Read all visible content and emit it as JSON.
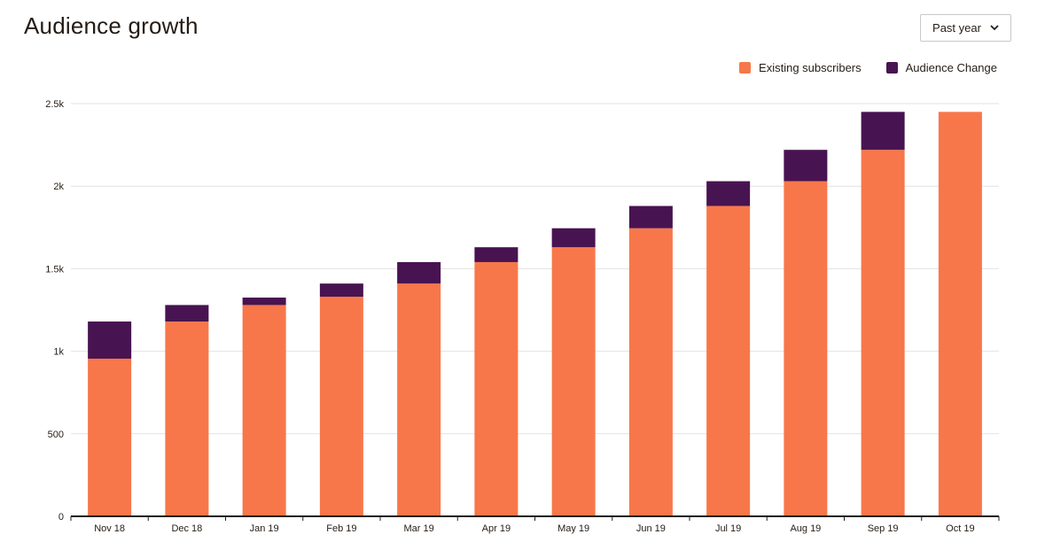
{
  "header": {
    "title": "Audience growth"
  },
  "range_select": {
    "value": "Past year",
    "icon": "chevron-down-icon"
  },
  "legend": [
    {
      "label": "Existing subscribers",
      "color": "#f7774a"
    },
    {
      "label": "Audience Change",
      "color": "#481351"
    }
  ],
  "chart_data": {
    "type": "bar",
    "stacked": true,
    "categories": [
      "Nov 18",
      "Dec 18",
      "Jan 19",
      "Feb 19",
      "Mar 19",
      "Apr 19",
      "May 19",
      "Jun 19",
      "Jul 19",
      "Aug 19",
      "Sep 19",
      "Oct 19"
    ],
    "series": [
      {
        "name": "Existing subscribers",
        "color": "#f7774a",
        "values": [
          955,
          1180,
          1280,
          1330,
          1410,
          1540,
          1630,
          1745,
          1880,
          2030,
          2220,
          2450
        ]
      },
      {
        "name": "Audience Change",
        "color": "#481351",
        "values": [
          225,
          100,
          45,
          80,
          130,
          90,
          115,
          135,
          150,
          190,
          230,
          0
        ]
      }
    ],
    "ylim": [
      0,
      2500
    ],
    "yticks": [
      0,
      500,
      1000,
      1500,
      2000,
      2500
    ],
    "ytick_labels": [
      "0",
      "500",
      "1k",
      "1.5k",
      "2k",
      "2.5k"
    ],
    "grid": true,
    "legend_position": "top-right"
  }
}
